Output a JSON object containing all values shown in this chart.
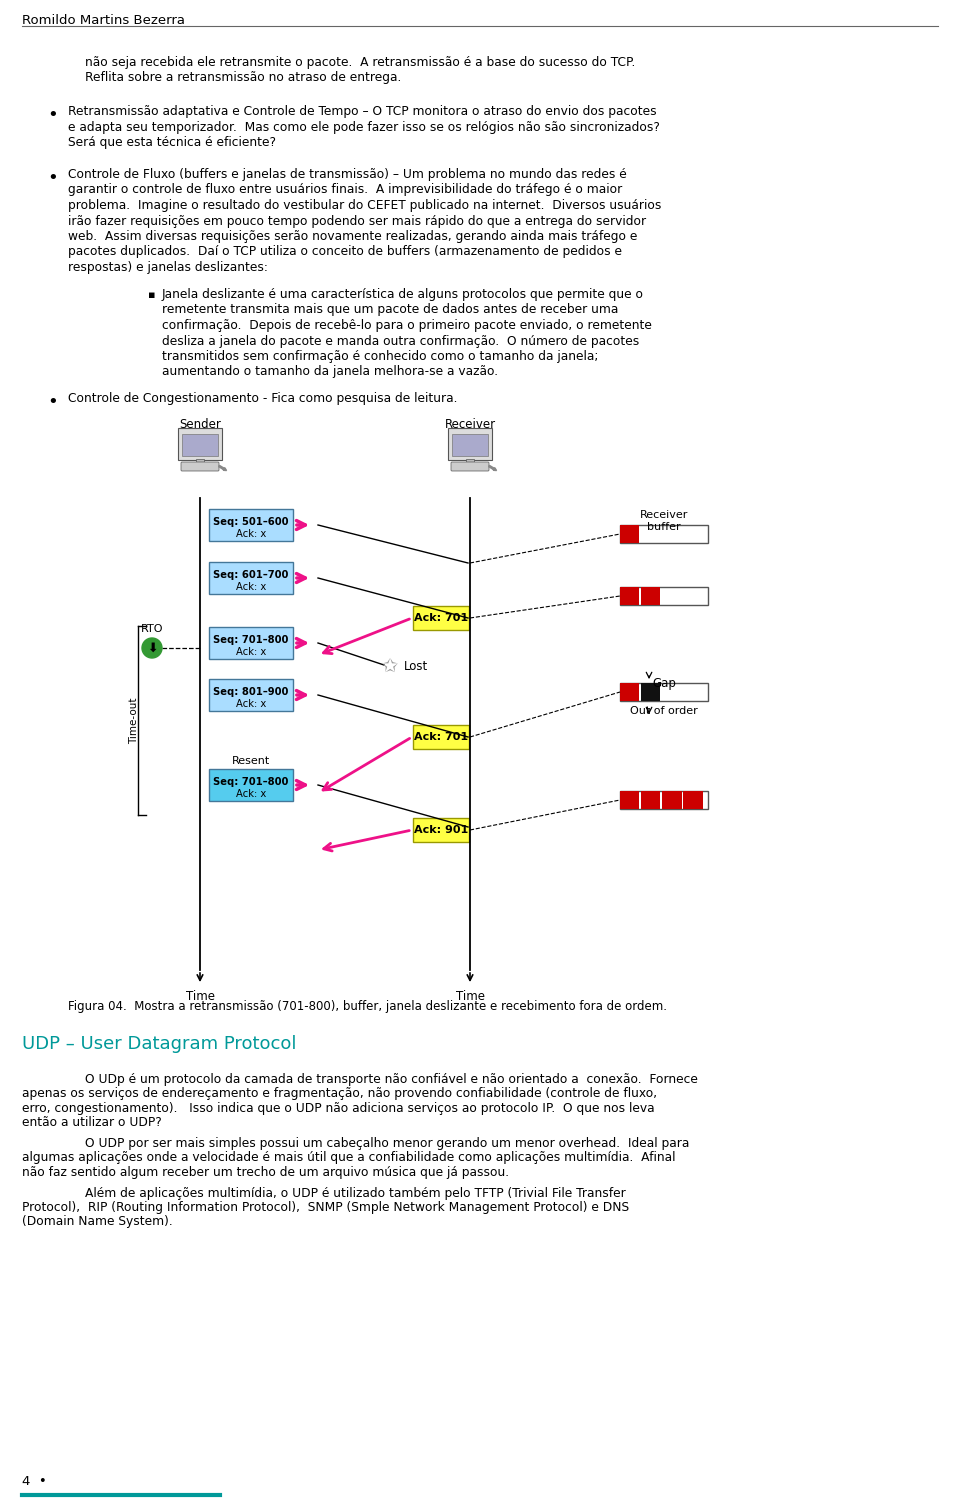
{
  "page_title": "Romildo Martins Bezerra",
  "bg_color": "#ffffff",
  "text_color": "#000000",
  "udp_title_color": "#009999",
  "footer_line_color": "#009999",
  "para1_lines": [
    "não seja recebida ele retransmite o pacote.  A retransmissão é a base do sucesso do TCP.",
    "Reflita sobre a retransmissão no atraso de entrega."
  ],
  "bullet1_lines": [
    "Retransmissão adaptativa e Controle de Tempo – O TCP monitora o atraso do envio dos pacotes",
    "e adapta seu temporizador.  Mas como ele pode fazer isso se os relógios não são sincronizados?",
    "Será que esta técnica é eficiente?"
  ],
  "bullet2_lines": [
    "Controle de Fluxo (buffers e janelas de transmissão) – Um problema no mundo das redes é",
    "garantir o controle de fluxo entre usuários finais.  A imprevisibilidade do tráfego é o maior",
    "problema.  Imagine o resultado do vestibular do CEFET publicado na internet.  Diversos usuários",
    "irão fazer requisições em pouco tempo podendo ser mais rápido do que a entrega do servidor",
    "web.  Assim diversas requisições serão novamente realizadas, gerando ainda mais tráfego e",
    "pacotes duplicados.  Daí o TCP utiliza o conceito de buffers (armazenamento de pedidos e",
    "respostas) e janelas deslizantes:"
  ],
  "sub_bullet_lines": [
    "Janela deslizante é uma característica de alguns protocolos que permite que o",
    "remetente transmita mais que um pacote de dados antes de receber uma",
    "confirmação.  Depois de recebê-lo para o primeiro pacote enviado, o remetente",
    "desliza a janela do pacote e manda outra confirmação.  O número de pacotes",
    "transmitidos sem confirmação é conhecido como o tamanho da janela;",
    "aumentando o tamanho da janela melhora-se a vazão."
  ],
  "bullet3_lines": [
    "Controle de Congestionamento - Fica como pesquisa de leitura."
  ],
  "fig_caption": "Figura 04.  Mostra a retransmissão (701-800), buffer, janela deslizante e recebimento fora de ordem.",
  "udp_title": "UDP – User Datagram Protocol",
  "udp_para1_lines": [
    "O UDp é um protocolo da camada de transporte não confiável e não orientado a  conexão.  Fornece",
    "apenas os serviços de endereçamento e fragmentação, não provendo confiabilidade (controle de fluxo,",
    "erro, congestionamento).   Isso indica que o UDP não adiciona serviços ao protocolo IP.  O que nos leva",
    "então a utilizar o UDP?"
  ],
  "udp_para2_lines": [
    "O UDP por ser mais simples possui um cabeçalho menor gerando um menor overhead.  Ideal para",
    "algumas aplicações onde a velocidade é mais útil que a confiabilidade como aplicações multimídia.  Afinal",
    "não faz sentido algum receber um trecho de um arquivo música que já passou."
  ],
  "udp_para3_lines": [
    "Além de aplicações multimídia, o UDP é utilizado também pelo TFTP (Trivial File Transfer",
    "Protocol),  RIP (Routing Information Protocol),  SNMP (Smple Network Management Protocol) e DNS",
    "(Domain Name System)."
  ],
  "page_num": "4  •"
}
